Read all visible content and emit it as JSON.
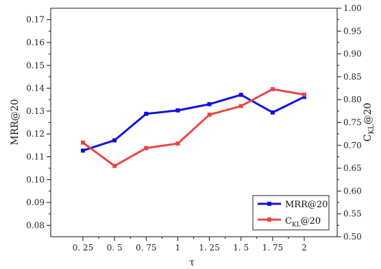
{
  "chart_data": {
    "type": "line",
    "title": "",
    "xlabel": "τ",
    "ylabel_left": "MRR@20",
    "ylabel_right": {
      "main": "C",
      "sub": "KL",
      "suffix": "@20"
    },
    "categories": [
      "0.25",
      "0.5",
      "0.75",
      "1",
      "1.25",
      "1.5",
      "1.75",
      "2"
    ],
    "x_tick_labels": [
      "0. 25",
      "0. 5",
      "0. 75",
      "1",
      "1. 25",
      "1. 5",
      "1. 75",
      "2"
    ],
    "ylim_left": [
      0.075,
      0.175
    ],
    "ylim_right": [
      0.5,
      1.0
    ],
    "y_ticks_left": [
      "0.08",
      "0.09",
      "0.10",
      "0.11",
      "0.12",
      "0.13",
      "0.14",
      "0.15",
      "0.16",
      "0.17"
    ],
    "y_ticks_right": [
      "0.50",
      "0.55",
      "0.60",
      "0.65",
      "0.70",
      "0.75",
      "0.80",
      "0.85",
      "0.90",
      "0.95",
      "1.00"
    ],
    "series": [
      {
        "name": "MRR@20",
        "axis": "left",
        "color": "#1010dd",
        "values": [
          0.1127,
          0.1172,
          0.1288,
          0.1303,
          0.133,
          0.1371,
          0.1294,
          0.1362
        ]
      },
      {
        "name": "C_KL@20",
        "legend": {
          "main": "C",
          "sub": "KL",
          "suffix": "@20"
        },
        "axis": "right",
        "color": "#ee4444",
        "values": [
          0.706,
          0.655,
          0.694,
          0.704,
          0.767,
          0.786,
          0.823,
          0.811
        ]
      }
    ],
    "legend_position": "bottom-right",
    "grid": false
  }
}
